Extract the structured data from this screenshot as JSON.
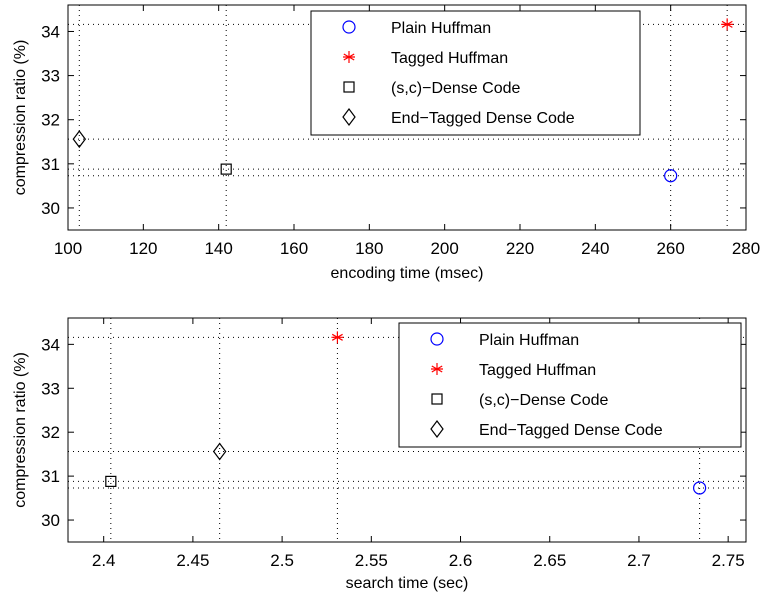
{
  "chart_data": [
    {
      "type": "scatter",
      "xlabel": "encoding time (msec)",
      "ylabel": "compression ratio (%)",
      "xlim": [
        100,
        280
      ],
      "ylim": [
        29.5,
        34.6
      ],
      "xticks": [
        100,
        120,
        140,
        160,
        180,
        200,
        220,
        240,
        260,
        280
      ],
      "xtick_labels": [
        "100",
        "120",
        "140",
        "160",
        "180",
        "200",
        "220",
        "240",
        "260",
        "280"
      ],
      "yticks": [
        30,
        31,
        32,
        33,
        34
      ],
      "ytick_labels": [
        "30",
        "31",
        "32",
        "33",
        "34"
      ],
      "legend_position": "top-right",
      "series": [
        {
          "name": "Plain Huffman",
          "marker": "circle",
          "color": "#0000ff",
          "x": 260,
          "y": 30.73
        },
        {
          "name": "Tagged Huffman",
          "marker": "star",
          "color": "#ff0000",
          "x": 275,
          "y": 34.16
        },
        {
          "name": "(s,c)−Dense Code",
          "marker": "square",
          "color": "#000000",
          "x": 142,
          "y": 30.88
        },
        {
          "name": "End−Tagged Dense Code",
          "marker": "diamond",
          "color": "#000000",
          "x": 103,
          "y": 31.56
        }
      ]
    },
    {
      "type": "scatter",
      "xlabel": "search time (sec)",
      "ylabel": "compression ratio (%)",
      "xlim": [
        2.38,
        2.76
      ],
      "ylim": [
        29.5,
        34.6
      ],
      "xticks": [
        2.4,
        2.45,
        2.5,
        2.55,
        2.6,
        2.65,
        2.7,
        2.75
      ],
      "xtick_labels": [
        "2.4",
        "2.45",
        "2.5",
        "2.55",
        "2.6",
        "2.65",
        "2.7",
        "2.75"
      ],
      "yticks": [
        30,
        31,
        32,
        33,
        34
      ],
      "ytick_labels": [
        "30",
        "31",
        "32",
        "33",
        "34"
      ],
      "legend_position": "top-right",
      "series": [
        {
          "name": "Plain Huffman",
          "marker": "circle",
          "color": "#0000ff",
          "x": 2.734,
          "y": 30.73
        },
        {
          "name": "Tagged Huffman",
          "marker": "star",
          "color": "#ff0000",
          "x": 2.531,
          "y": 34.16
        },
        {
          "name": "(s,c)−Dense Code",
          "marker": "square",
          "color": "#000000",
          "x": 2.404,
          "y": 30.88
        },
        {
          "name": "End−Tagged Dense Code",
          "marker": "diamond",
          "color": "#000000",
          "x": 2.465,
          "y": 31.56
        }
      ]
    }
  ]
}
